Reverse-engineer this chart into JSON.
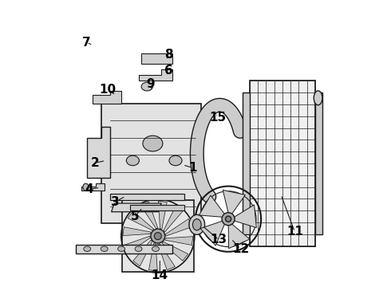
{
  "title": "",
  "bg_color": "#ffffff",
  "line_color": "#1a1a1a",
  "label_color": "#000000",
  "label_fontsize": 11,
  "figsize": [
    4.9,
    3.6
  ],
  "dpi": 100,
  "label_configs": {
    "14": [
      0.375,
      0.038,
      0.375,
      0.095
    ],
    "13": [
      0.582,
      0.162,
      0.525,
      0.21
    ],
    "12": [
      0.658,
      0.13,
      0.625,
      0.165
    ],
    "11": [
      0.848,
      0.19,
      0.8,
      0.32
    ],
    "5": [
      0.288,
      0.245,
      0.315,
      0.275
    ],
    "3": [
      0.218,
      0.295,
      0.255,
      0.315
    ],
    "4": [
      0.128,
      0.34,
      0.165,
      0.345
    ],
    "2": [
      0.148,
      0.432,
      0.185,
      0.44
    ],
    "1": [
      0.49,
      0.415,
      0.455,
      0.425
    ],
    "9": [
      0.342,
      0.708,
      0.345,
      0.695
    ],
    "10": [
      0.192,
      0.69,
      0.22,
      0.67
    ],
    "6": [
      0.405,
      0.755,
      0.4,
      0.745
    ],
    "8": [
      0.405,
      0.812,
      0.4,
      0.8
    ],
    "7": [
      0.118,
      0.855,
      0.14,
      0.845
    ],
    "15": [
      0.578,
      0.592,
      0.575,
      0.6
    ]
  }
}
